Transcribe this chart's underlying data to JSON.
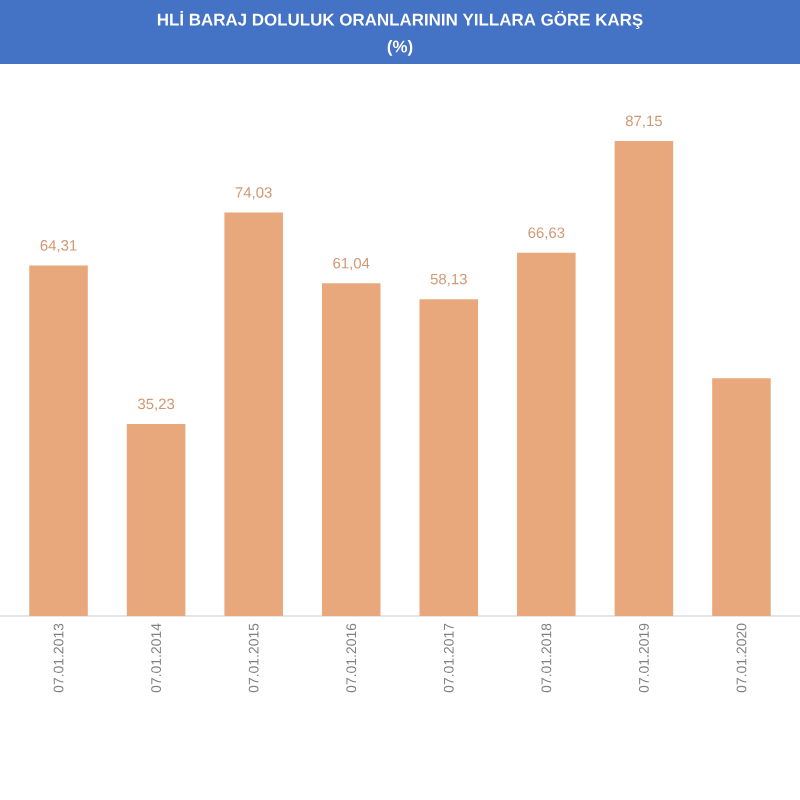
{
  "chart_data": {
    "type": "bar",
    "title": "HLİ BARAJ DOLULUK ORANLARININ YILLARA GÖRE KARŞ",
    "subtitle": "(%)",
    "categories": [
      "07.01.2013",
      "07.01.2014",
      "07.01.2015",
      "07.01.2016",
      "07.01.2017",
      "07.01.2018",
      "07.01.2019",
      "07.01.2020"
    ],
    "values": [
      64.31,
      35.23,
      74.03,
      61.04,
      58.13,
      66.63,
      87.15,
      43.6
    ],
    "value_labels": [
      "64,31",
      "35,23",
      "74,03",
      "61,04",
      "58,13",
      "66,63",
      "87,15",
      null
    ],
    "color": "#e8a87c",
    "tick_labels": "x"
  }
}
